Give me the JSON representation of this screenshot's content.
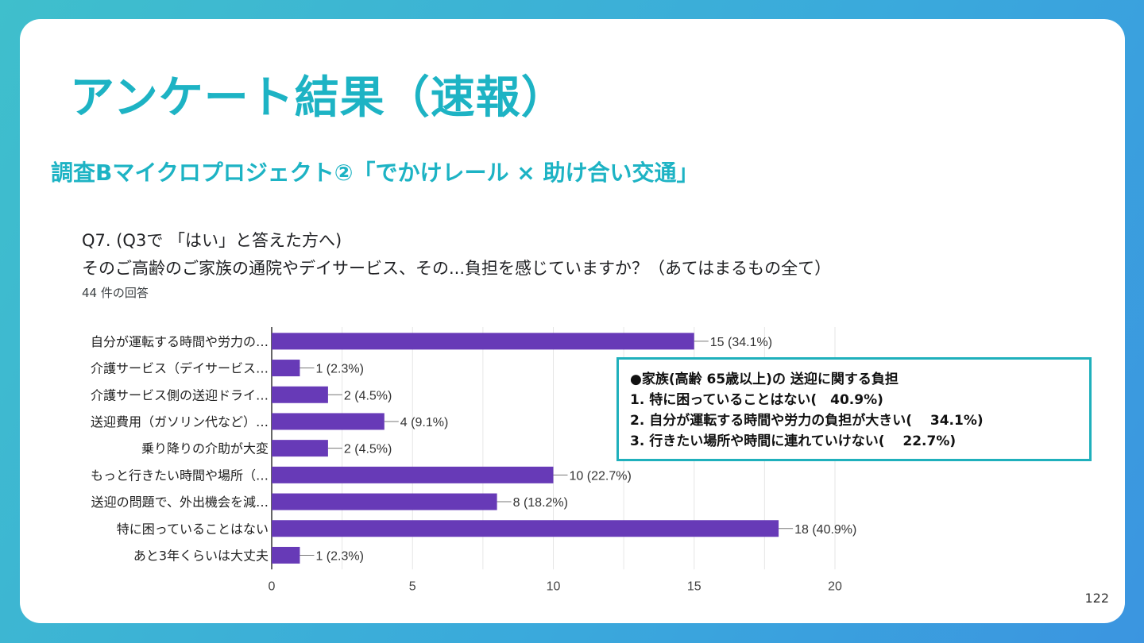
{
  "slide": {
    "title": "アンケート結果（速報）",
    "subtitle": "調査Bマイクロプロジェクト②「でかけレール × 助け合い交通」",
    "page_number": "122"
  },
  "question": {
    "line1": "Q7. (Q3で 「はい」と答えた方へ)",
    "line2": "そのご高齢のご家族の通院やデイサービス、その...負担を感じていますか？（あてはまるもの全て）",
    "responses": "44 件の回答"
  },
  "callout": {
    "heading": "●家族(高齢 65歳以上)の 送迎に関する負担",
    "items": [
      "1. 特に困っていることはない(　40.9%)",
      "2. 自分が運転する時間や労力の負担が大きい(　 34.1%)",
      "3. 行きたい場所や時間に連れていけない(　 22.7%)"
    ]
  },
  "colors": {
    "bar": "#673ab7",
    "accent": "#1db3c4",
    "grid": "#e6e6e6"
  },
  "chart_data": {
    "type": "bar",
    "orientation": "horizontal",
    "categories": [
      "自分が運転する時間や労力の…",
      "介護サービス（デイサービス…",
      "介護サービス側の送迎ドライ…",
      "送迎費用（ガソリン代など）…",
      "乗り降りの介助が大変",
      "もっと行きたい時間や場所（…",
      "送迎の問題で、外出機会を減…",
      "特に困っていることはない",
      "あと3年くらいは大丈夫"
    ],
    "values": [
      15,
      1,
      2,
      4,
      2,
      10,
      8,
      18,
      1
    ],
    "data_labels": [
      "15 (34.1%)",
      "1 (2.3%)",
      "2 (4.5%)",
      "4 (9.1%)",
      "2 (4.5%)",
      "10 (22.7%)",
      "8 (18.2%)",
      "18 (40.9%)",
      "1 (2.3%)"
    ],
    "xlim": [
      0,
      20
    ],
    "xticks": [
      0,
      5,
      10,
      15,
      20
    ],
    "xlabel": "",
    "ylabel": "",
    "grid": true
  }
}
